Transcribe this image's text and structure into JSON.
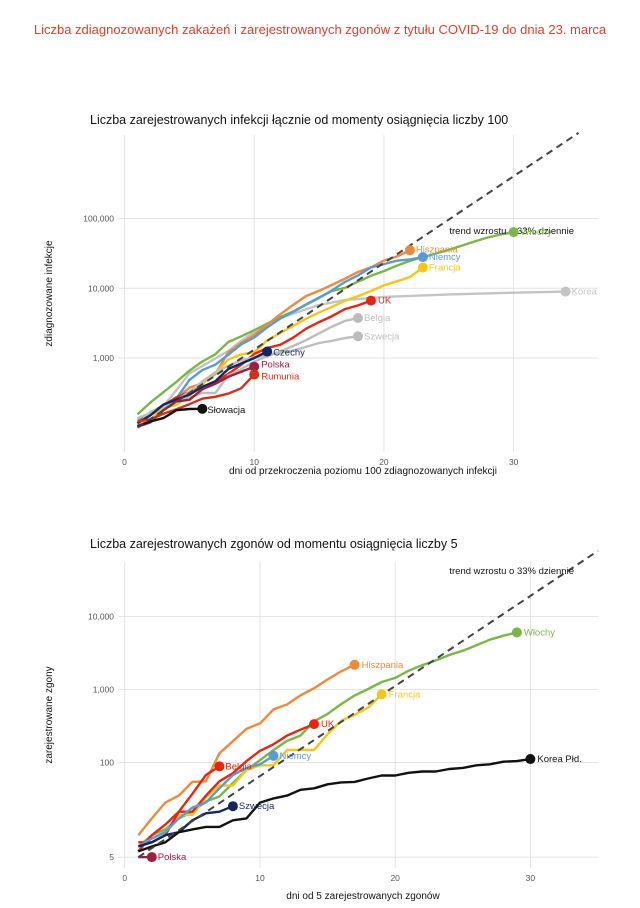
{
  "main_title": "Liczba zdiagnozowanych zakażeń i zarejestrowanych zgonów z tytułu COVID-19 do dnia 23. marca",
  "chart_data": [
    {
      "type": "line",
      "title": "Liczba zarejestrowanych infekcji łącznie od momenty osiągnięcia liczby 100",
      "xlabel": "dni od przekroczenia poziomu 100 zdiagnozowanych infekcji",
      "ylabel": "zdiagnozowane infekcje",
      "log_y": true,
      "xlim": [
        -0.5,
        36.5
      ],
      "ylim_log10": [
        1.65,
        6.2
      ],
      "x_ticks": [
        0,
        10,
        20,
        30
      ],
      "x_tick_labels": [
        "0",
        "10",
        "20",
        "30"
      ],
      "y_ticks": [
        1000,
        10000,
        100000
      ],
      "y_tick_labels": [
        "1,000",
        "10,000",
        "100,000"
      ],
      "grid": true,
      "legend": "none",
      "trend": {
        "label": "trend wzrostu o 33% dziennie",
        "start": [
          1,
          100
        ],
        "end": [
          35,
          1700000
        ]
      },
      "series": [
        {
          "name": "Korea",
          "color": "#c4c4c4",
          "x": [
            1,
            2,
            3,
            4,
            5,
            6,
            7,
            8,
            9,
            10,
            11,
            12,
            13,
            15,
            17,
            20,
            25,
            30,
            34
          ],
          "y": [
            100,
            156,
            204,
            346,
            602,
            763,
            977,
            1261,
            1766,
            2337,
            3150,
            3736,
            4335,
            5766,
            6767,
            7513,
            8162,
            8652,
            8961
          ]
        },
        {
          "name": "Włochy",
          "color": "#7ab648",
          "x": [
            1,
            2,
            3,
            4,
            5,
            6,
            7,
            8,
            9,
            10,
            11,
            12,
            13,
            14,
            15,
            16,
            17,
            18,
            19,
            20,
            21,
            22,
            23,
            24,
            25,
            26,
            27,
            28,
            29,
            30
          ],
          "y": [
            155,
            229,
            322,
            453,
            655,
            888,
            1128,
            1694,
            2036,
            2502,
            3089,
            3858,
            4636,
            5883,
            7375,
            9172,
            10149,
            12462,
            15113,
            17660,
            21157,
            24747,
            27980,
            31506,
            35713,
            41035,
            47021,
            53578,
            59138,
            63927
          ]
        },
        {
          "name": "Hiszpania",
          "color": "#ee8a3c",
          "x": [
            1,
            2,
            3,
            4,
            5,
            6,
            7,
            8,
            9,
            10,
            11,
            12,
            13,
            14,
            15,
            16,
            17,
            18,
            19,
            20,
            21,
            22
          ],
          "y": [
            114,
            151,
            200,
            261,
            374,
            430,
            589,
            1204,
            1639,
            2140,
            3004,
            4231,
            5753,
            7753,
            9191,
            11178,
            13716,
            17147,
            19980,
            24926,
            28572,
            35136
          ]
        },
        {
          "name": "Niemcy",
          "color": "#5b9bd5",
          "x": [
            1,
            2,
            3,
            4,
            5,
            6,
            7,
            8,
            9,
            10,
            11,
            12,
            13,
            14,
            15,
            16,
            17,
            18,
            19,
            20,
            21,
            22,
            23
          ],
          "y": [
            130,
            159,
            196,
            262,
            482,
            670,
            799,
            1112,
            1565,
            1966,
            2745,
            3675,
            4599,
            5813,
            7272,
            9367,
            12327,
            15320,
            19848,
            22213,
            24873,
            26000,
            28000
          ]
        },
        {
          "name": "Francja",
          "color": "#f5c518",
          "x": [
            1,
            2,
            3,
            4,
            5,
            6,
            7,
            8,
            9,
            10,
            11,
            12,
            13,
            14,
            15,
            16,
            17,
            18,
            19,
            20,
            21,
            22,
            23
          ],
          "y": [
            100,
            130,
            191,
            212,
            285,
            423,
            613,
            949,
            1126,
            1209,
            1784,
            2281,
            2876,
            3661,
            4469,
            5423,
            6633,
            7730,
            9134,
            10995,
            12612,
            14459,
            19856
          ]
        },
        {
          "name": "UK",
          "color": "#e8250f",
          "x": [
            1,
            2,
            3,
            4,
            5,
            6,
            7,
            8,
            9,
            10,
            11,
            12,
            13,
            14,
            15,
            16,
            17,
            18,
            19
          ],
          "y": [
            116,
            164,
            207,
            273,
            321,
            382,
            456,
            590,
            798,
            1140,
            1391,
            1543,
            1950,
            2626,
            3269,
            3983,
            5018,
            5683,
            6650
          ]
        },
        {
          "name": "Belgia",
          "color": "#bdbdbd",
          "x": [
            1,
            2,
            3,
            4,
            5,
            6,
            7,
            8,
            9,
            10,
            11,
            12,
            13,
            14,
            15,
            16,
            17,
            18
          ],
          "y": [
            109,
            169,
            200,
            239,
            267,
            314,
            314,
            559,
            689,
            886,
            1058,
            1243,
            1486,
            1795,
            2257,
            2815,
            3401,
            3743
          ]
        },
        {
          "name": "Szwecja",
          "color": "#bdbdbd",
          "x": [
            1,
            2,
            3,
            4,
            5,
            6,
            7,
            8,
            9,
            10,
            11,
            12,
            13,
            14,
            15,
            16,
            17,
            18
          ],
          "y": [
            137,
            161,
            203,
            248,
            326,
            461,
            620,
            775,
            924,
            1022,
            1103,
            1190,
            1279,
            1439,
            1639,
            1763,
            1934,
            2046
          ]
        },
        {
          "name": "Czechy",
          "color": "#13265e",
          "x": [
            1,
            2,
            3,
            4,
            5,
            6,
            7,
            8,
            9,
            10,
            11
          ],
          "y": [
            116,
            150,
            214,
            253,
            298,
            383,
            464,
            694,
            833,
            995,
            1236
          ]
        },
        {
          "name": "Polska",
          "color": "#9c2040",
          "x": [
            1,
            2,
            3,
            4,
            5,
            6,
            7,
            8,
            9,
            10
          ],
          "y": [
            103,
            119,
            177,
            238,
            251,
            355,
            425,
            536,
            634,
            749
          ]
        },
        {
          "name": "Rumunia",
          "color": "#d13019",
          "x": [
            1,
            2,
            3,
            4,
            5,
            6,
            7,
            8,
            9,
            10
          ],
          "y": [
            123,
            131,
            158,
            184,
            217,
            260,
            277,
            308,
            367,
            576
          ]
        },
        {
          "name": "Słowacja",
          "color": "#111111",
          "x": [
            1,
            2,
            3,
            4,
            5,
            6
          ],
          "y": [
            105,
            123,
            137,
            178,
            185,
            186
          ]
        }
      ]
    },
    {
      "type": "line",
      "title": "Liczba zarejestrowanych zgonów od momentu osiągnięcia liczby 5",
      "xlabel": "dni od 5 zarejestrowanych zgonów",
      "ylabel": "zarejestrowane zgony",
      "log_y": true,
      "xlim": [
        -0.5,
        35
      ],
      "ylim_log10": [
        0.55,
        4.75
      ],
      "x_ticks": [
        0,
        10,
        20,
        30
      ],
      "x_tick_labels": [
        "0",
        "10",
        "20",
        "30"
      ],
      "y_ticks": [
        5,
        100,
        1000,
        10000
      ],
      "y_tick_labels": [
        "5",
        "100",
        "1,000",
        "10,000"
      ],
      "grid": true,
      "legend": "none",
      "trend": {
        "label": "trend wzrostu o 33% dziennie",
        "start": [
          1,
          5
        ],
        "end": [
          35,
          80000
        ]
      },
      "series": [
        {
          "name": "Włochy",
          "color": "#7ab648",
          "x": [
            1,
            2,
            3,
            4,
            5,
            6,
            7,
            8,
            9,
            10,
            11,
            12,
            13,
            14,
            15,
            16,
            17,
            18,
            19,
            20,
            21,
            22,
            23,
            24,
            25,
            26,
            27,
            28,
            29
          ],
          "y": [
            7,
            10,
            12,
            17,
            21,
            29,
            34,
            52,
            79,
            107,
            148,
            197,
            233,
            366,
            463,
            631,
            827,
            1016,
            1266,
            1441,
            1809,
            2158,
            2503,
            2978,
            3405,
            4032,
            4825,
            5476,
            6077
          ]
        },
        {
          "name": "Hiszpania",
          "color": "#ee8a3c",
          "x": [
            1,
            2,
            3,
            4,
            5,
            6,
            7,
            8,
            9,
            10,
            11,
            12,
            13,
            14,
            15,
            16,
            17
          ],
          "y": [
            10,
            17,
            28,
            35,
            54,
            55,
            133,
            195,
            289,
            342,
            533,
            623,
            830,
            1043,
            1375,
            1772,
            2182
          ]
        },
        {
          "name": "Francja",
          "color": "#f5c518",
          "x": [
            1,
            2,
            3,
            4,
            5,
            6,
            7,
            8,
            9,
            10,
            11,
            12,
            13,
            14,
            15,
            16,
            17,
            18,
            19
          ],
          "y": [
            7,
            9,
            11,
            19,
            19,
            33,
            48,
            48,
            79,
            91,
            91,
            148,
            148,
            148,
            244,
            372,
            450,
            562,
            860
          ]
        },
        {
          "name": "UK",
          "color": "#e8250f",
          "x": [
            1,
            2,
            3,
            4,
            5,
            6,
            7,
            8,
            9,
            10,
            11,
            12,
            13,
            14
          ],
          "y": [
            8,
            8,
            10,
            21,
            21,
            35,
            55,
            71,
            104,
            144,
            177,
            233,
            281,
            335
          ]
        },
        {
          "name": "Belgia",
          "color": "#e8250f",
          "x": [
            1,
            2,
            3,
            4,
            5,
            6,
            7
          ],
          "y": [
            6,
            10,
            14,
            21,
            37,
            67,
            88
          ]
        },
        {
          "name": "Niemcy",
          "color": "#5b9bd5",
          "x": [
            1,
            2,
            3,
            4,
            5,
            6,
            7,
            8,
            9,
            10,
            11
          ],
          "y": [
            7,
            9,
            11,
            17,
            24,
            28,
            44,
            67,
            84,
            94,
            123
          ]
        },
        {
          "name": "Szwecja",
          "color": "#13265e",
          "x": [
            1,
            2,
            3,
            4,
            5,
            6,
            7,
            8
          ],
          "y": [
            7,
            8,
            10,
            11,
            16,
            20,
            21,
            25
          ]
        },
        {
          "name": "Polska",
          "color": "#9c2040",
          "x": [
            1,
            2
          ],
          "y": [
            5,
            5
          ]
        },
        {
          "name": "Korea Płd.",
          "color": "#111111",
          "x": [
            1,
            2,
            3,
            4,
            5,
            6,
            7,
            8,
            9,
            10,
            11,
            12,
            13,
            14,
            15,
            16,
            17,
            18,
            19,
            20,
            21,
            22,
            23,
            24,
            25,
            26,
            27,
            28,
            29,
            30
          ],
          "y": [
            6,
            7,
            8,
            11,
            12,
            13,
            13,
            16,
            17,
            28,
            32,
            35,
            42,
            44,
            50,
            53,
            54,
            60,
            66,
            66,
            72,
            75,
            75,
            81,
            84,
            91,
            94,
            102,
            104,
            111
          ]
        }
      ]
    }
  ]
}
